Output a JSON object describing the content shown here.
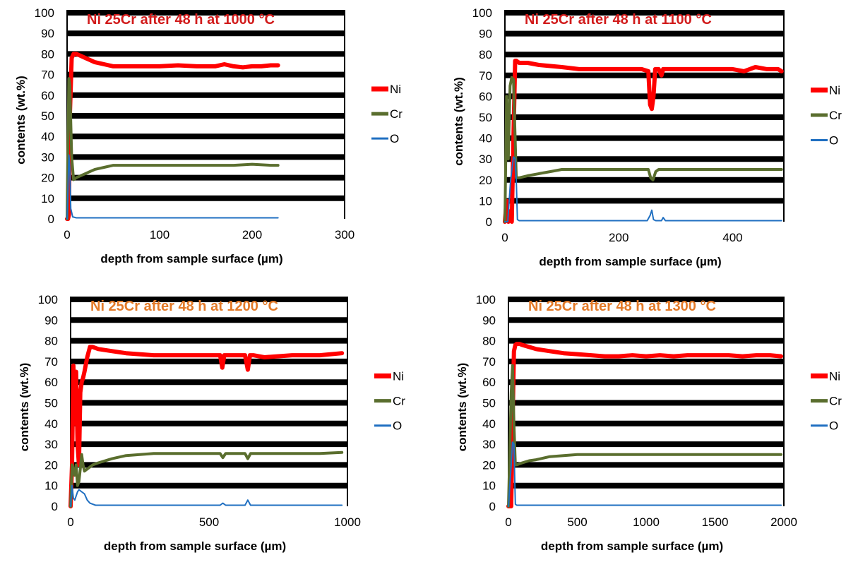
{
  "chart_data": [
    {
      "type": "line",
      "title": "Ni 25Cr after 48 h at 1000 °C",
      "title_color": "#d11b1b",
      "xlabel": "depth from sample surface (µm)",
      "ylabel": "contents (wt.%)",
      "xlim": [
        0,
        300
      ],
      "ylim": [
        0,
        100
      ],
      "xticks": [
        "0",
        "100",
        "200",
        "300"
      ],
      "yticks": [
        "0",
        "10",
        "20",
        "30",
        "40",
        "50",
        "60",
        "70",
        "80",
        "90",
        "100"
      ],
      "grid": true,
      "legend": "right",
      "series": [
        {
          "name": "Ni",
          "color": "#ff0000",
          "x": [
            0,
            1,
            2,
            3,
            5,
            7,
            10,
            15,
            20,
            30,
            40,
            50,
            60,
            80,
            100,
            120,
            140,
            160,
            170,
            180,
            190,
            200,
            210,
            220,
            228
          ],
          "y": [
            0,
            0,
            2,
            50,
            78,
            80,
            80,
            79,
            78,
            76,
            75,
            74,
            74,
            74,
            74,
            74.5,
            74,
            74,
            75,
            74,
            73.5,
            74,
            74,
            74.5,
            74.5
          ]
        },
        {
          "name": "Cr",
          "color": "#5a6e2e",
          "x": [
            0,
            1,
            2,
            3,
            5,
            7,
            10,
            15,
            20,
            30,
            40,
            50,
            60,
            80,
            100,
            120,
            140,
            160,
            180,
            200,
            220,
            228
          ],
          "y": [
            0,
            40,
            68,
            65,
            30,
            19,
            20,
            21,
            22,
            24,
            25,
            26,
            26,
            26,
            26,
            26,
            26,
            26,
            26,
            26.5,
            26,
            26
          ]
        },
        {
          "name": "O",
          "color": "#1f6fc1",
          "x": [
            0,
            1,
            2,
            3,
            4,
            6,
            10,
            50,
            100,
            150,
            200,
            228
          ],
          "y": [
            0,
            15,
            31,
            25,
            5,
            1,
            0.5,
            0.5,
            0.5,
            0.5,
            0.5,
            0.5
          ]
        }
      ]
    },
    {
      "type": "line",
      "title": "Ni 25Cr after 48 h at 1100 °C",
      "title_color": "#d11b1b",
      "xlabel": "depth from sample surface (µm)",
      "ylabel": "contents (wt.%)",
      "xlim": [
        0,
        490
      ],
      "ylim": [
        0,
        100
      ],
      "xticks": [
        "0",
        "200",
        "400"
      ],
      "xtick_values": [
        0,
        200,
        400
      ],
      "yticks": [
        "0",
        "10",
        "20",
        "30",
        "40",
        "50",
        "60",
        "70",
        "80",
        "90",
        "100"
      ],
      "grid": true,
      "legend": "right",
      "series": [
        {
          "name": "Ni",
          "color": "#ff0000",
          "x": [
            0,
            3,
            6,
            9,
            12,
            15,
            18,
            20,
            25,
            40,
            60,
            80,
            100,
            130,
            160,
            200,
            240,
            252,
            255,
            258,
            261,
            264,
            270,
            275,
            278,
            282,
            300,
            350,
            400,
            420,
            440,
            460,
            480,
            486
          ],
          "y": [
            0,
            10,
            0,
            5,
            0,
            40,
            77,
            77,
            76,
            76,
            75,
            74.5,
            74,
            73,
            73,
            73,
            73,
            72,
            56,
            54,
            60,
            73,
            73,
            70,
            73,
            73,
            73,
            73,
            73,
            72,
            74,
            73,
            73,
            72
          ]
        },
        {
          "name": "Cr",
          "color": "#5a6e2e",
          "x": [
            0,
            3,
            6,
            9,
            12,
            15,
            18,
            20,
            25,
            40,
            60,
            80,
            100,
            150,
            200,
            240,
            252,
            256,
            260,
            265,
            270,
            280,
            300,
            350,
            400,
            450,
            486
          ],
          "y": [
            0,
            60,
            30,
            65,
            69,
            68,
            40,
            21,
            21,
            22,
            23,
            24,
            25,
            25,
            25,
            25,
            25,
            21,
            20,
            24,
            25,
            25,
            25,
            25,
            25,
            25,
            25
          ]
        },
        {
          "name": "O",
          "color": "#1f6fc1",
          "x": [
            0,
            5,
            10,
            15,
            18,
            20,
            22,
            25,
            40,
            100,
            200,
            250,
            255,
            258,
            261,
            265,
            275,
            278,
            282,
            300,
            400,
            486
          ],
          "y": [
            0,
            0,
            20,
            31,
            30,
            20,
            1,
            0.5,
            0.5,
            0.5,
            0.5,
            0.5,
            3,
            5.5,
            1,
            0.5,
            0.5,
            2,
            0.5,
            0.5,
            0.5,
            0.5
          ]
        }
      ]
    },
    {
      "type": "line",
      "title": "Ni 25Cr after 48 h at 1200 °C",
      "title_color": "#e37a28",
      "xlabel": "depth from sample surface (µm)",
      "ylabel": "contents (wt.%)",
      "xlim": [
        0,
        1000
      ],
      "ylim": [
        0,
        100
      ],
      "xticks": [
        "0",
        "500",
        "1000"
      ],
      "xtick_values": [
        0,
        500,
        1000
      ],
      "yticks": [
        "0",
        "10",
        "20",
        "30",
        "40",
        "50",
        "60",
        "70",
        "80",
        "90",
        "100"
      ],
      "grid": true,
      "legend": "right",
      "series": [
        {
          "name": "Ni",
          "color": "#ff0000",
          "x": [
            0,
            5,
            10,
            15,
            20,
            25,
            30,
            35,
            40,
            45,
            50,
            60,
            70,
            80,
            100,
            150,
            200,
            300,
            400,
            500,
            540,
            548,
            555,
            570,
            630,
            640,
            648,
            660,
            700,
            800,
            900,
            980
          ],
          "y": [
            0,
            20,
            68,
            40,
            65,
            30,
            20,
            55,
            60,
            62,
            65,
            72,
            77,
            77,
            76,
            75,
            74,
            73,
            73,
            73,
            73,
            67,
            73,
            73,
            73,
            66,
            73,
            73,
            72,
            73,
            73,
            74
          ]
        },
        {
          "name": "Cr",
          "color": "#5a6e2e",
          "x": [
            0,
            5,
            10,
            15,
            20,
            25,
            30,
            35,
            40,
            45,
            50,
            60,
            70,
            80,
            100,
            150,
            200,
            300,
            400,
            500,
            540,
            550,
            560,
            630,
            640,
            650,
            700,
            800,
            900,
            980
          ],
          "y": [
            0,
            20,
            18,
            15,
            20,
            10,
            12,
            18,
            25,
            20,
            17,
            18,
            19,
            20,
            21,
            23,
            24.5,
            25.5,
            25.5,
            25.5,
            25.5,
            23.5,
            25.5,
            25.5,
            23,
            25.5,
            25.5,
            25.5,
            25.5,
            26
          ]
        },
        {
          "name": "O",
          "color": "#1f6fc1",
          "x": [
            0,
            5,
            10,
            15,
            20,
            25,
            30,
            40,
            50,
            60,
            70,
            80,
            90,
            100,
            200,
            300,
            400,
            500,
            540,
            550,
            560,
            630,
            640,
            650,
            700,
            800,
            900,
            980
          ],
          "y": [
            0,
            10,
            4,
            3,
            5,
            7,
            8,
            7,
            6,
            3,
            1.5,
            1,
            0.5,
            0.5,
            0.5,
            0.5,
            0.5,
            0.5,
            0.5,
            1.5,
            0.5,
            0.5,
            3,
            0.5,
            0.5,
            0.5,
            0.5,
            0.5
          ]
        }
      ]
    },
    {
      "type": "line",
      "title": "Ni 25Cr after 48 h at 1300 °C",
      "title_color": "#e37a28",
      "xlabel": "depth from sample surface (µm)",
      "ylabel": "contents (wt.%)",
      "xlim": [
        0,
        2000
      ],
      "ylim": [
        0,
        100
      ],
      "xticks": [
        "0",
        "500",
        "1000",
        "1500",
        "2000"
      ],
      "xtick_values": [
        0,
        500,
        1000,
        1500,
        2000
      ],
      "yticks": [
        "0",
        "10",
        "20",
        "30",
        "40",
        "50",
        "60",
        "70",
        "80",
        "90",
        "100"
      ],
      "grid": true,
      "legend": "right",
      "series": [
        {
          "name": "Ni",
          "color": "#ff0000",
          "x": [
            0,
            20,
            30,
            40,
            50,
            60,
            80,
            100,
            150,
            200,
            300,
            400,
            500,
            600,
            700,
            800,
            900,
            1000,
            1100,
            1200,
            1300,
            1400,
            1500,
            1600,
            1700,
            1800,
            1900,
            1980
          ],
          "y": [
            0,
            0,
            40,
            75,
            78,
            78.5,
            78.5,
            78,
            77,
            76,
            75,
            74,
            73.5,
            73,
            72.5,
            72.5,
            73,
            72.5,
            73,
            72.5,
            73,
            73,
            73,
            73,
            72.5,
            73,
            73,
            72.5
          ]
        },
        {
          "name": "Cr",
          "color": "#5a6e2e",
          "x": [
            0,
            20,
            30,
            40,
            50,
            60,
            80,
            100,
            150,
            200,
            300,
            400,
            500,
            600,
            800,
            1000,
            1200,
            1400,
            1600,
            1800,
            1980
          ],
          "y": [
            0,
            55,
            68,
            40,
            20,
            20,
            20.5,
            21,
            22,
            22.5,
            24,
            24.5,
            25,
            25,
            25,
            25,
            25,
            25,
            25,
            25,
            25
          ]
        },
        {
          "name": "O",
          "color": "#1f6fc1",
          "x": [
            0,
            20,
            30,
            40,
            45,
            50,
            60,
            100,
            500,
            1000,
            1500,
            1980
          ],
          "y": [
            0,
            20,
            31,
            30,
            15,
            1,
            0.5,
            0.5,
            0.5,
            0.5,
            0.5,
            0.5
          ]
        }
      ]
    }
  ]
}
